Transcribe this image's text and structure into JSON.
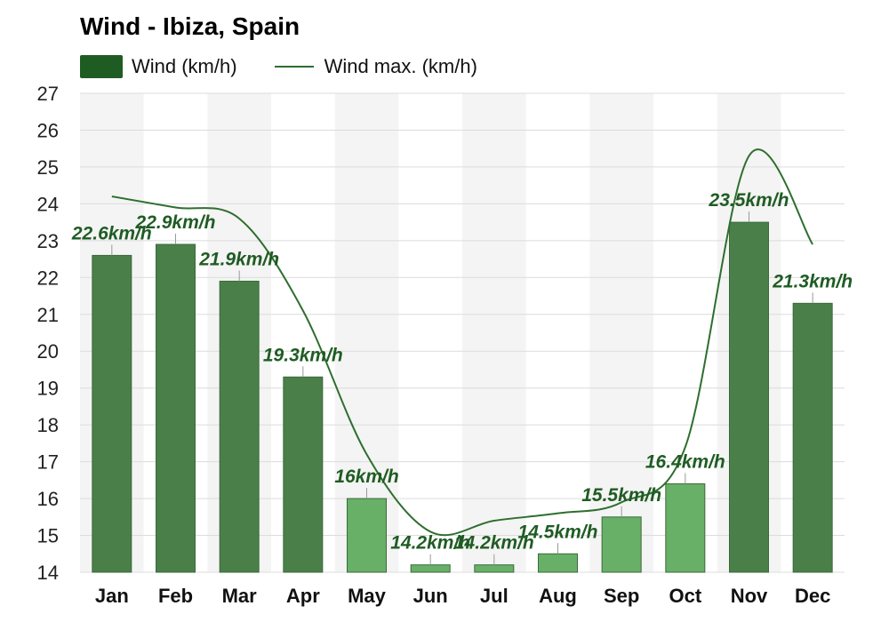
{
  "chart_data": {
    "type": "bar",
    "title": "Wind - Ibiza, Spain",
    "categories": [
      "Jan",
      "Feb",
      "Mar",
      "Apr",
      "May",
      "Jun",
      "Jul",
      "Aug",
      "Sep",
      "Oct",
      "Nov",
      "Dec"
    ],
    "series": [
      {
        "name": "Wind (km/h)",
        "type": "bar",
        "values": [
          22.6,
          22.9,
          21.9,
          19.3,
          16,
          14.2,
          14.2,
          14.5,
          15.5,
          16.4,
          23.5,
          21.3
        ],
        "labels": [
          "22.6km/h",
          "22.9km/h",
          "21.9km/h",
          "19.3km/h",
          "16km/h",
          "14.2km/h",
          "14.2km/h",
          "14.5km/h",
          "15.5km/h",
          "16.4km/h",
          "23.5km/h",
          "21.3km/h"
        ]
      },
      {
        "name": "Wind max. (km/h)",
        "type": "line",
        "values": [
          24.2,
          23.9,
          23.6,
          21.1,
          17.2,
          15.1,
          15.4,
          15.6,
          15.9,
          17.4,
          25.3,
          22.9
        ]
      }
    ],
    "yticks": [
      14,
      15,
      16,
      17,
      18,
      19,
      20,
      21,
      22,
      23,
      24,
      25,
      26,
      27
    ],
    "ylim": [
      14,
      27
    ],
    "grid": true,
    "legend": "top-left",
    "colors": {
      "bar_dark": "#4a7f4a",
      "bar_light": "#68b068",
      "legend_bar": "#1f5c23",
      "line": "#2e6e2e",
      "label": "#1f5c23"
    }
  }
}
